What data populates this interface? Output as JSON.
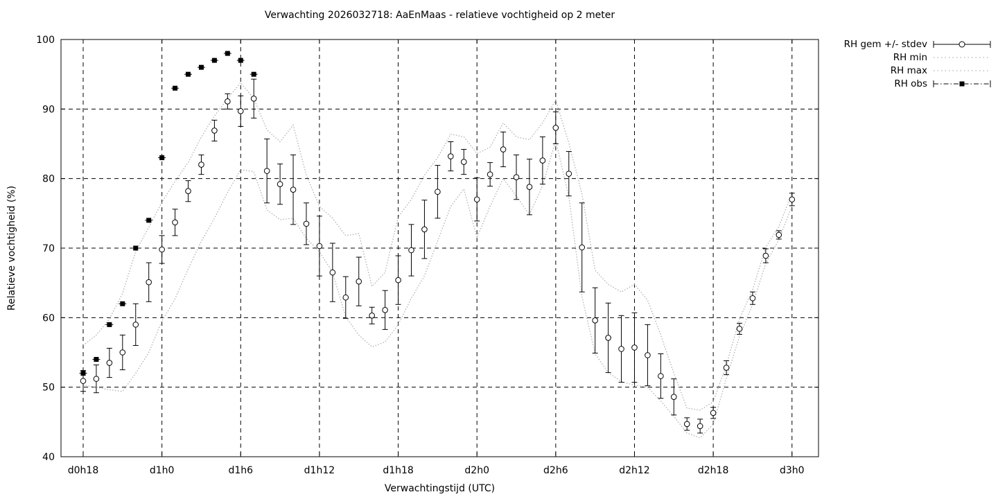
{
  "title": "Verwachting 2026032718: AaEnMaas - relatieve vochtigheid op 2 meter",
  "legend": {
    "entries": [
      {
        "label": "RH gem +/- stdev",
        "style": "errorbar-circle",
        "color": "#000000"
      },
      {
        "label": "RH min",
        "style": "dotted-line",
        "color": "#b0b0b0"
      },
      {
        "label": "RH max",
        "style": "dotted-line",
        "color": "#b0b0b0"
      },
      {
        "label": "RH obs",
        "style": "dashdot-filled-square",
        "color": "#000000"
      }
    ]
  },
  "chart_data": {
    "type": "line",
    "title": "Verwachting 2026032718: AaEnMaas - relatieve vochtigheid op 2 meter",
    "xlabel": "Verwachtingstijd (UTC)",
    "ylabel": "Relatieve vochtigheid (%)",
    "ylim": [
      40,
      100
    ],
    "y_ticks": [
      40,
      50,
      60,
      70,
      80,
      90,
      100
    ],
    "x_tick_labels": [
      "d0h18",
      "d1h0",
      "d1h6",
      "d1h12",
      "d1h18",
      "d2h0",
      "d2h6",
      "d2h12",
      "d2h18",
      "d3h0"
    ],
    "x_tick_indices": [
      0,
      6,
      12,
      18,
      24,
      30,
      36,
      42,
      48,
      54
    ],
    "grid": true,
    "legend_position": "outside-top-right",
    "colors": {
      "mean": "#000000",
      "minmax": "#b0b0b0",
      "obs": "#000000",
      "grid": "#000000"
    },
    "categories": [
      "d0h18",
      "d0h19",
      "d0h20",
      "d0h21",
      "d0h22",
      "d0h23",
      "d1h0",
      "d1h1",
      "d1h2",
      "d1h3",
      "d1h4",
      "d1h5",
      "d1h6",
      "d1h7",
      "d1h8",
      "d1h9",
      "d1h10",
      "d1h11",
      "d1h12",
      "d1h13",
      "d1h14",
      "d1h15",
      "d1h16",
      "d1h17",
      "d1h18",
      "d1h19",
      "d1h20",
      "d1h21",
      "d1h22",
      "d1h23",
      "d2h0",
      "d2h1",
      "d2h2",
      "d2h3",
      "d2h4",
      "d2h5",
      "d2h6",
      "d2h7",
      "d2h8",
      "d2h9",
      "d2h10",
      "d2h11",
      "d2h12",
      "d2h13",
      "d2h14",
      "d2h15",
      "d2h16",
      "d2h17",
      "d2h18",
      "d2h19",
      "d2h20",
      "d2h21",
      "d2h22",
      "d2h23",
      "d3h0"
    ],
    "series": [
      {
        "name": "RH gem",
        "render": "errorbar-circle",
        "values": [
          50.9,
          51.2,
          53.5,
          55.0,
          59.0,
          65.1,
          69.8,
          73.7,
          78.2,
          82.0,
          86.9,
          91.1,
          89.7,
          91.5,
          81.1,
          79.2,
          78.4,
          73.5,
          70.3,
          66.5,
          62.9,
          65.2,
          60.3,
          61.1,
          65.4,
          69.7,
          72.7,
          78.1,
          83.2,
          82.4,
          77.0,
          80.6,
          84.2,
          80.2,
          78.8,
          82.6,
          87.3,
          80.7,
          70.1,
          59.6,
          57.1,
          55.5,
          55.7,
          54.6,
          51.6,
          48.6,
          44.7,
          44.4,
          46.3,
          52.8,
          58.4,
          62.8,
          68.9,
          71.9,
          77.0
        ]
      },
      {
        "name": "RH stdev",
        "render": "errorbar-halfheight",
        "values": [
          1.5,
          2.0,
          2.1,
          2.5,
          3.0,
          2.8,
          2.0,
          1.9,
          1.5,
          1.4,
          1.5,
          1.1,
          2.2,
          2.8,
          4.6,
          2.9,
          5.0,
          3.0,
          4.3,
          4.2,
          3.0,
          3.5,
          1.2,
          2.8,
          3.5,
          3.7,
          4.2,
          3.8,
          2.1,
          1.8,
          3.1,
          1.7,
          2.5,
          3.2,
          4.0,
          3.4,
          2.3,
          3.2,
          6.4,
          4.7,
          5.0,
          4.8,
          5.0,
          4.4,
          3.2,
          2.6,
          0.9,
          1.0,
          0.8,
          1.0,
          0.8,
          0.9,
          1.0,
          0.6,
          0.9
        ]
      },
      {
        "name": "RH min",
        "render": "dotted-line",
        "values": [
          50.3,
          50.0,
          49.6,
          49.4,
          52.0,
          55.0,
          59.5,
          62.7,
          67.0,
          71.0,
          74.3,
          78.0,
          81.3,
          81.0,
          75.5,
          74.1,
          74.3,
          71.4,
          69.5,
          66.5,
          60.1,
          57.5,
          55.8,
          56.5,
          59.0,
          62.8,
          66.0,
          71.0,
          76.0,
          78.5,
          71.5,
          76.0,
          80.0,
          77.5,
          74.8,
          79.0,
          85.5,
          77.4,
          63.0,
          54.8,
          52.1,
          50.8,
          50.3,
          50.0,
          48.0,
          45.8,
          43.4,
          42.7,
          44.7,
          51.3,
          57.3,
          61.9,
          67.8,
          71.2,
          76.1
        ]
      },
      {
        "name": "RH max",
        "render": "dotted-line",
        "values": [
          56.0,
          57.5,
          59.8,
          63.5,
          69.5,
          73.0,
          76.6,
          79.6,
          82.3,
          86.0,
          89.0,
          91.5,
          93.8,
          91.5,
          87.0,
          85.3,
          87.7,
          80.5,
          76.0,
          74.3,
          71.8,
          72.1,
          64.5,
          66.5,
          74.5,
          77.0,
          80.5,
          83.0,
          86.4,
          86.0,
          83.6,
          84.5,
          88.0,
          86.0,
          85.6,
          88.0,
          91.3,
          85.1,
          77.8,
          66.8,
          64.8,
          63.7,
          64.8,
          62.5,
          57.5,
          52.0,
          47.0,
          46.7,
          47.9,
          53.2,
          59.8,
          64.0,
          70.1,
          73.1,
          77.9
        ]
      },
      {
        "name": "RH obs",
        "render": "filled-square",
        "values": [
          52,
          54,
          59,
          62,
          70,
          74,
          83,
          93,
          95,
          96,
          97,
          98,
          97,
          95,
          null,
          null,
          null,
          null,
          null,
          null,
          null,
          null,
          null,
          null,
          null,
          null,
          null,
          null,
          null,
          null,
          null,
          null,
          null,
          null,
          null,
          null,
          null,
          null,
          null,
          null,
          null,
          null,
          null,
          null,
          null,
          null,
          null,
          null,
          null,
          null,
          null,
          null,
          null,
          null,
          null
        ]
      }
    ]
  }
}
